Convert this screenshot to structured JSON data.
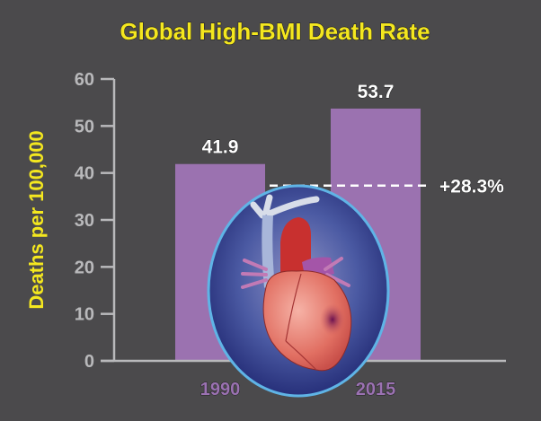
{
  "chart_data": {
    "type": "bar",
    "title": "Global High-BMI Death Rate",
    "xlabel": "",
    "ylabel": "Deaths per 100,000",
    "categories": [
      "1990",
      "2015"
    ],
    "values": [
      41.9,
      53.7
    ],
    "data_labels": [
      "41.9",
      "53.7"
    ],
    "ylim": [
      0,
      60
    ],
    "yticks": [
      0,
      10,
      20,
      30,
      40,
      50,
      60
    ],
    "annotation": "+28.3%",
    "grid": false,
    "colors": {
      "bar": "#9b72b0",
      "title": "#f4e71f",
      "axis": "#b9b9bb",
      "background": "#4b4a4c"
    },
    "illustration": "heart-icon"
  }
}
